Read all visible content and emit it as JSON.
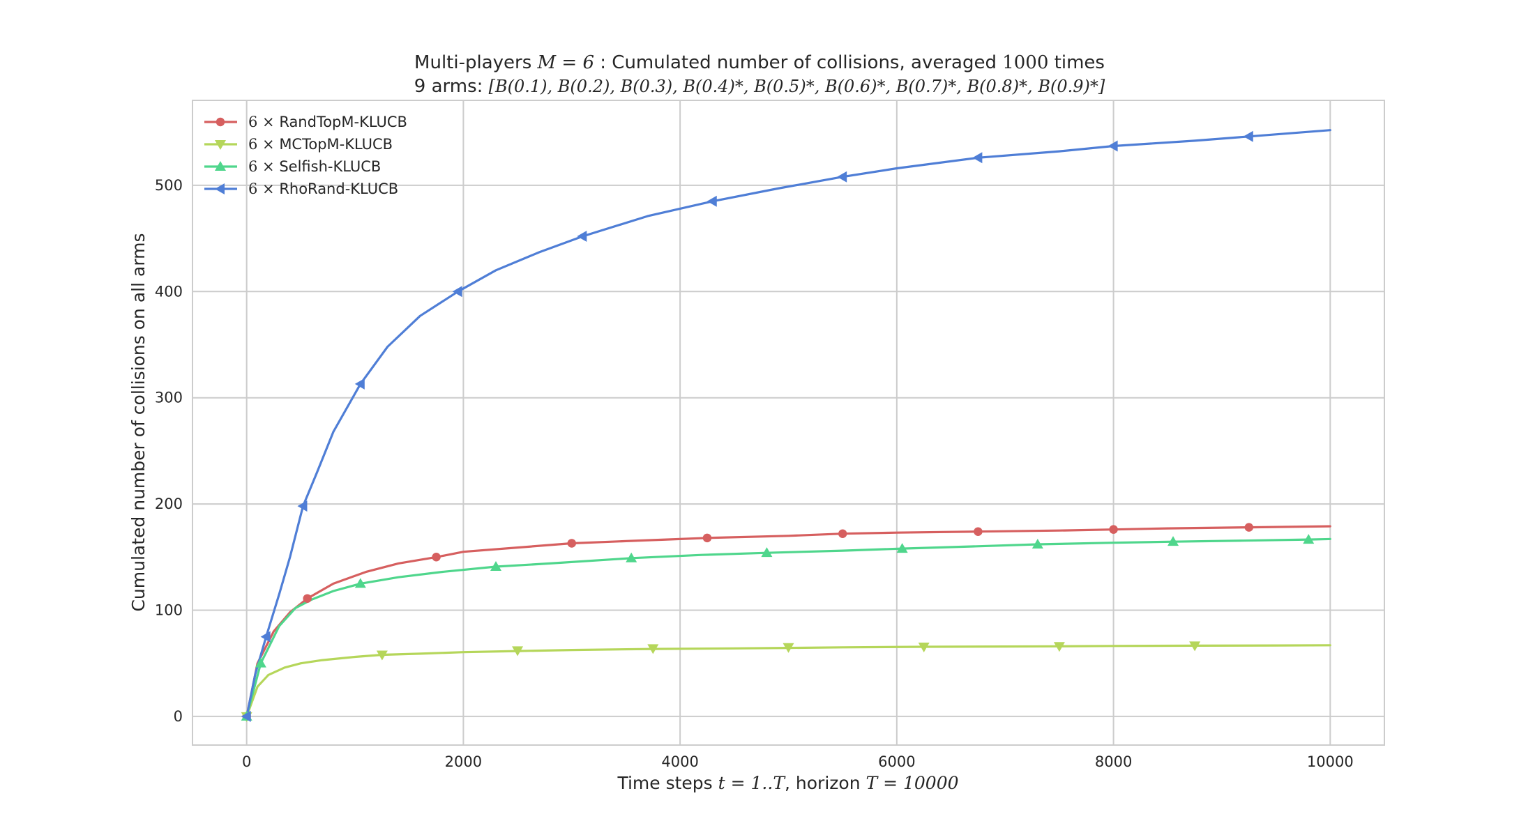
{
  "chart_data": {
    "type": "line",
    "title_line1_pre": "Multi-players ",
    "title_line1_math": "M = 6",
    "title_line1_mid": " : Cumulated number of collisions, averaged ",
    "title_line1_num": "1000",
    "title_line1_post": " times",
    "title_line2_pre": "9 arms: ",
    "title_line2_math": "[B(0.1), B(0.2), B(0.3), B(0.4)*, B(0.5)*, B(0.6)*, B(0.7)*, B(0.8)*, B(0.9)*]",
    "xlabel_pre": "Time steps ",
    "xlabel_math1": "t = 1..T",
    "xlabel_mid": ", horizon ",
    "xlabel_math2": "T = 10000",
    "ylabel": "Cumulated number of collisions on all arms",
    "xlim": [
      -500,
      10500
    ],
    "ylim": [
      -27,
      580
    ],
    "xticks": [
      0,
      2000,
      4000,
      6000,
      8000,
      10000
    ],
    "xtick_labels": [
      "0",
      "2000",
      "4000",
      "6000",
      "8000",
      "10000"
    ],
    "yticks": [
      0,
      100,
      200,
      300,
      400,
      500
    ],
    "ytick_labels": [
      "0",
      "100",
      "200",
      "300",
      "400",
      "500"
    ],
    "grid": true,
    "legend_position": "top-left",
    "series": [
      {
        "name": "RandTopM-KLUCB",
        "prefix": "6 ×",
        "color": "#d65f5f",
        "marker": "circle",
        "x": [
          0,
          100,
          250,
          400,
          560,
          800,
          1100,
          1400,
          1750,
          2000,
          2500,
          3000,
          3500,
          4000,
          4250,
          5000,
          5500,
          6000,
          6750,
          7500,
          8000,
          8500,
          9250,
          10000
        ],
        "y": [
          0,
          50,
          80,
          98,
          111,
          125,
          136,
          144,
          150,
          155,
          159,
          163,
          165,
          167,
          168,
          170,
          172,
          173,
          174,
          175,
          176,
          177,
          178,
          179
        ],
        "markers_x": [
          0,
          560,
          1750,
          3000,
          4250,
          5500,
          6750,
          8000,
          9250
        ],
        "markers_y": [
          0,
          111,
          150,
          163,
          168,
          172,
          174,
          176,
          178
        ]
      },
      {
        "name": "MCTopM-KLUCB",
        "prefix": "6 ×",
        "color": "#b5d65a",
        "marker": "triangle-down",
        "x": [
          0,
          100,
          200,
          350,
          500,
          700,
          1000,
          1250,
          1600,
          2000,
          2500,
          3000,
          3750,
          4500,
          5000,
          5500,
          6250,
          7000,
          7500,
          8000,
          8750,
          9500,
          10000
        ],
        "y": [
          0,
          28,
          39,
          46,
          50,
          53,
          56,
          58,
          59,
          60.5,
          61.5,
          62.5,
          63.5,
          64,
          64.5,
          65,
          65.5,
          65.8,
          66,
          66.3,
          66.6,
          66.8,
          67
        ],
        "markers_x": [
          0,
          1250,
          2500,
          3750,
          5000,
          6250,
          7500,
          8750
        ],
        "markers_y": [
          0,
          58,
          62,
          64,
          65,
          65.5,
          66,
          66.6
        ]
      },
      {
        "name": "Selfish-KLUCB",
        "prefix": "6 ×",
        "color": "#4fd68c",
        "marker": "triangle-up",
        "x": [
          0,
          130,
          300,
          450,
          600,
          800,
          1050,
          1400,
          1800,
          2300,
          2800,
          3550,
          4200,
          4800,
          5500,
          6050,
          6700,
          7300,
          8000,
          8550,
          9200,
          9800,
          10000
        ],
        "y": [
          0,
          50,
          85,
          102,
          110,
          118,
          125,
          131,
          136,
          141,
          144,
          149,
          152,
          154,
          156,
          158,
          160,
          162,
          163.5,
          164.5,
          165.5,
          166.5,
          167
        ],
        "markers_x": [
          0,
          130,
          1050,
          2300,
          3550,
          4800,
          6050,
          7300,
          8550,
          9800
        ],
        "markers_y": [
          0,
          50,
          125,
          141,
          149,
          154,
          158,
          162,
          164.5,
          166.5
        ]
      },
      {
        "name": "RhoRand-KLUCB",
        "prefix": "6 ×",
        "color": "#4f7ed6",
        "marker": "triangle-left",
        "x": [
          0,
          80,
          180,
          300,
          400,
          520,
          650,
          800,
          1050,
          1300,
          1600,
          1950,
          2300,
          2700,
          3100,
          3700,
          4300,
          4900,
          5500,
          6000,
          6750,
          7500,
          8000,
          8750,
          9250,
          10000
        ],
        "y": [
          0,
          40,
          75,
          115,
          150,
          198,
          230,
          268,
          313,
          348,
          377,
          400,
          420,
          437,
          452,
          471,
          485,
          497,
          508,
          516,
          526,
          532,
          537,
          542,
          546,
          552
        ],
        "markers_x": [
          0,
          180,
          520,
          1050,
          1950,
          3100,
          4300,
          5500,
          6750,
          8000,
          9250
        ],
        "markers_y": [
          0,
          75,
          198,
          313,
          400,
          452,
          485,
          508,
          526,
          537,
          546
        ]
      }
    ]
  }
}
